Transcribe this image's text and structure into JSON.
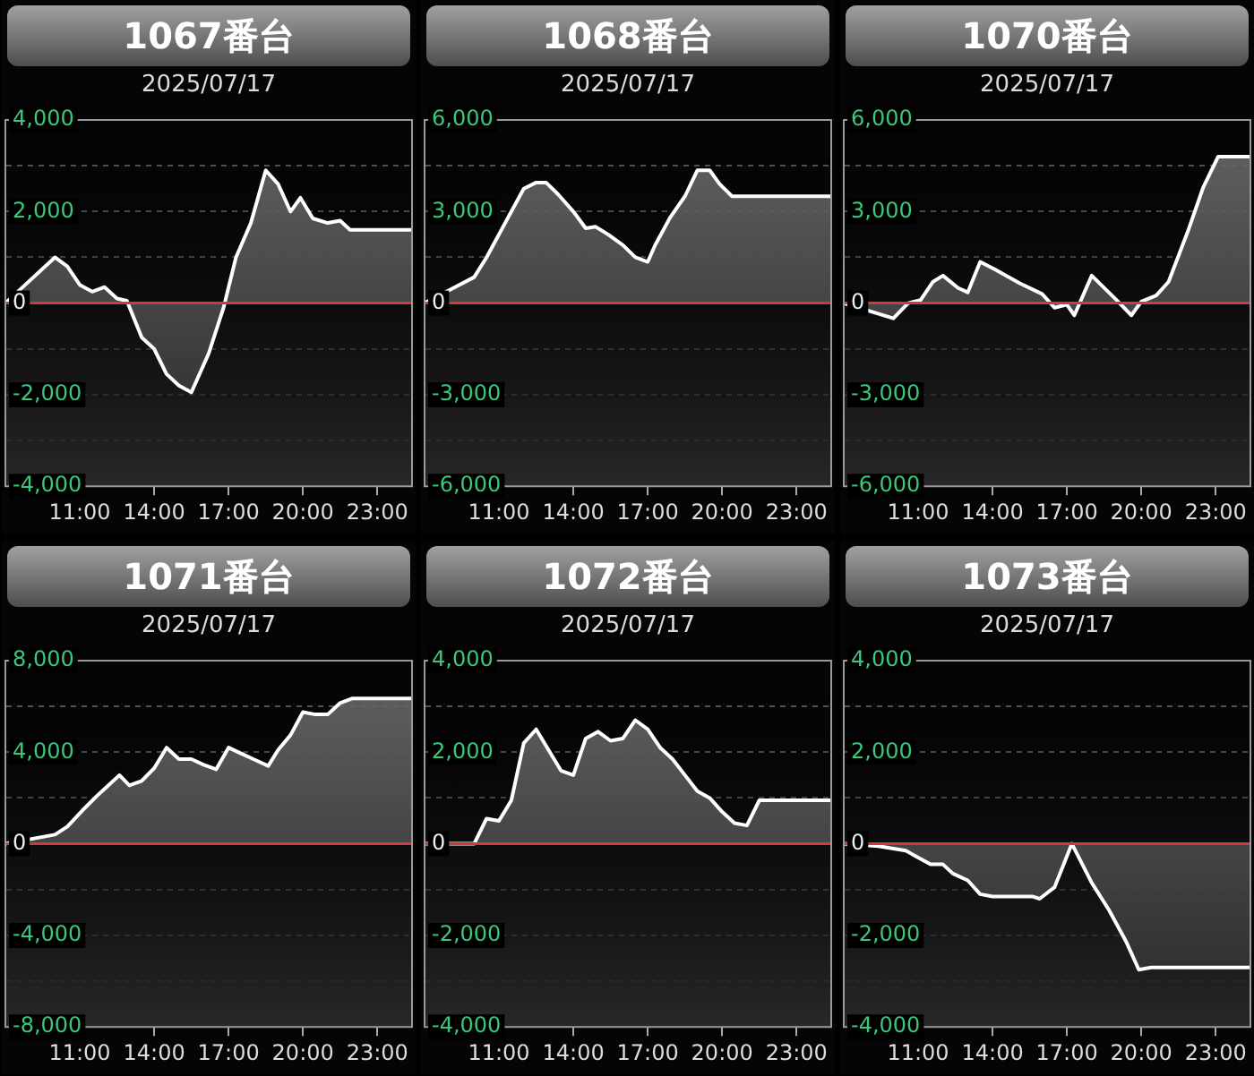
{
  "chart_data": [
    {
      "type": "area",
      "title": "1067番台",
      "subtitle": "2025/07/17",
      "color": "#ffffff",
      "x": [
        8,
        10,
        10.5,
        11,
        11.5,
        12,
        12.5,
        12.9,
        13.5,
        14,
        14.5,
        15,
        15.5,
        16.2,
        16.8,
        17.3,
        17.9,
        18.5,
        19,
        19.5,
        19.9,
        20.4,
        21,
        21.5,
        21.9,
        24.4
      ],
      "values": [
        0,
        1000,
        800,
        400,
        250,
        350,
        100,
        50,
        -750,
        -1000,
        -1550,
        -1800,
        -1950,
        -1100,
        -100,
        1000,
        1750,
        2900,
        2600,
        2000,
        2300,
        1850,
        1750,
        1800,
        1600,
        1600
      ],
      "xlim": [
        8,
        24.4
      ],
      "xticks": [
        {
          "value": 11,
          "label": "11:00"
        },
        {
          "value": 14,
          "label": "14:00"
        },
        {
          "value": 17,
          "label": "17:00"
        },
        {
          "value": 20,
          "label": "20:00"
        },
        {
          "value": 23,
          "label": "23:00"
        }
      ],
      "ylim": [
        -4000,
        4000
      ],
      "yticks": [
        {
          "value": -4000,
          "label": "-4,000"
        },
        {
          "value": -3000,
          "label": null
        },
        {
          "value": -2000,
          "label": "-2,000"
        },
        {
          "value": -1000,
          "label": null
        },
        {
          "value": 0,
          "label": "0"
        },
        {
          "value": 1000,
          "label": null
        },
        {
          "value": 2000,
          "label": "2,000"
        },
        {
          "value": 3000,
          "label": null
        },
        {
          "value": 4000,
          "label": "4,000"
        }
      ],
      "grid": "y",
      "ref_lines": [
        {
          "axis": "y",
          "value": 0,
          "color": "#d03a3a"
        }
      ]
    },
    {
      "type": "area",
      "title": "1068番台",
      "subtitle": "2025/07/17",
      "color": "#ffffff",
      "x": [
        8,
        10,
        10.5,
        11.5,
        12,
        12.5,
        12.9,
        13.4,
        14,
        14.5,
        14.9,
        15.4,
        16,
        16.5,
        17,
        17.3,
        17.9,
        18.5,
        19,
        19.5,
        19.9,
        20.4,
        24.4
      ],
      "values": [
        0,
        850,
        1500,
        3000,
        3750,
        3950,
        3950,
        3550,
        3000,
        2450,
        2500,
        2250,
        1900,
        1500,
        1350,
        1900,
        2800,
        3500,
        4350,
        4350,
        3900,
        3500,
        3500
      ],
      "xlim": [
        8,
        24.4
      ],
      "xticks": [
        {
          "value": 11,
          "label": "11:00"
        },
        {
          "value": 14,
          "label": "14:00"
        },
        {
          "value": 17,
          "label": "17:00"
        },
        {
          "value": 20,
          "label": "20:00"
        },
        {
          "value": 23,
          "label": "23:00"
        }
      ],
      "ylim": [
        -6000,
        6000
      ],
      "yticks": [
        {
          "value": -6000,
          "label": "-6,000"
        },
        {
          "value": -4500,
          "label": null
        },
        {
          "value": -3000,
          "label": "-3,000"
        },
        {
          "value": -1500,
          "label": null
        },
        {
          "value": 0,
          "label": "0"
        },
        {
          "value": 1500,
          "label": null
        },
        {
          "value": 3000,
          "label": "3,000"
        },
        {
          "value": 4500,
          "label": null
        },
        {
          "value": 6000,
          "label": "6,000"
        }
      ],
      "grid": "y",
      "ref_lines": [
        {
          "axis": "y",
          "value": 0,
          "color": "#d03a3a"
        }
      ]
    },
    {
      "type": "area",
      "title": "1070番台",
      "subtitle": "2025/07/17",
      "color": "#ffffff",
      "x": [
        8,
        10,
        10.6,
        11.1,
        11.6,
        12,
        12.6,
        13,
        13.5,
        14.1,
        15.1,
        16,
        16.5,
        17,
        17.3,
        18,
        19,
        19.6,
        20,
        20.6,
        21.1,
        21.9,
        22.5,
        23.1,
        24.4
      ],
      "values": [
        0,
        -500,
        0,
        100,
        700,
        900,
        500,
        350,
        1350,
        1100,
        650,
        300,
        -150,
        -50,
        -400,
        900,
        100,
        -400,
        50,
        250,
        700,
        2400,
        3800,
        4800,
        4800
      ],
      "xlim": [
        8,
        24.4
      ],
      "xticks": [
        {
          "value": 11,
          "label": "11:00"
        },
        {
          "value": 14,
          "label": "14:00"
        },
        {
          "value": 17,
          "label": "17:00"
        },
        {
          "value": 20,
          "label": "20:00"
        },
        {
          "value": 23,
          "label": "23:00"
        }
      ],
      "ylim": [
        -6000,
        6000
      ],
      "yticks": [
        {
          "value": -6000,
          "label": "-6,000"
        },
        {
          "value": -4500,
          "label": null
        },
        {
          "value": -3000,
          "label": "-3,000"
        },
        {
          "value": -1500,
          "label": null
        },
        {
          "value": 0,
          "label": "0"
        },
        {
          "value": 1500,
          "label": null
        },
        {
          "value": 3000,
          "label": "3,000"
        },
        {
          "value": 4500,
          "label": null
        },
        {
          "value": 6000,
          "label": "6,000"
        }
      ],
      "grid": "y",
      "ref_lines": [
        {
          "axis": "y",
          "value": 0,
          "color": "#d03a3a"
        }
      ]
    },
    {
      "type": "area",
      "title": "1071番台",
      "subtitle": "2025/07/17",
      "color": "#ffffff",
      "x": [
        8,
        10,
        10.5,
        11.1,
        11.7,
        12.1,
        12.6,
        13,
        13.5,
        14,
        14.5,
        15,
        15.5,
        16,
        16.5,
        17,
        17.5,
        18,
        18.6,
        19,
        19.5,
        20,
        20.5,
        21,
        21.5,
        22,
        24.4
      ],
      "values": [
        0,
        400,
        750,
        1450,
        2100,
        2500,
        3000,
        2550,
        2750,
        3300,
        4200,
        3700,
        3700,
        3450,
        3250,
        4200,
        3950,
        3700,
        3400,
        4100,
        4750,
        5750,
        5650,
        5650,
        6150,
        6350,
        6350
      ],
      "xlim": [
        8,
        24.4
      ],
      "xticks": [
        {
          "value": 11,
          "label": "11:00"
        },
        {
          "value": 14,
          "label": "14:00"
        },
        {
          "value": 17,
          "label": "17:00"
        },
        {
          "value": 20,
          "label": "20:00"
        },
        {
          "value": 23,
          "label": "23:00"
        }
      ],
      "ylim": [
        -8000,
        8000
      ],
      "yticks": [
        {
          "value": -8000,
          "label": "-8,000"
        },
        {
          "value": -6000,
          "label": null
        },
        {
          "value": -4000,
          "label": "-4,000"
        },
        {
          "value": -2000,
          "label": null
        },
        {
          "value": 0,
          "label": "0"
        },
        {
          "value": 2000,
          "label": null
        },
        {
          "value": 4000,
          "label": "4,000"
        },
        {
          "value": 6000,
          "label": null
        },
        {
          "value": 8000,
          "label": "8,000"
        }
      ],
      "grid": "y",
      "ref_lines": [
        {
          "axis": "y",
          "value": 0,
          "color": "#d03a3a"
        }
      ]
    },
    {
      "type": "area",
      "title": "1072番台",
      "subtitle": "2025/07/17",
      "color": "#ffffff",
      "x": [
        8,
        10,
        10.5,
        11,
        11.5,
        12,
        12.5,
        13,
        13.5,
        14,
        14.5,
        15,
        15.5,
        16,
        16.5,
        17,
        17.5,
        18,
        18.5,
        19,
        19.5,
        20,
        20.5,
        21,
        21.5,
        24.4
      ],
      "values": [
        0,
        0,
        550,
        500,
        950,
        2200,
        2500,
        2050,
        1600,
        1500,
        2300,
        2450,
        2250,
        2300,
        2700,
        2500,
        2100,
        1850,
        1500,
        1150,
        1000,
        700,
        450,
        400,
        950,
        950
      ],
      "xlim": [
        8,
        24.4
      ],
      "xticks": [
        {
          "value": 11,
          "label": "11:00"
        },
        {
          "value": 14,
          "label": "14:00"
        },
        {
          "value": 17,
          "label": "17:00"
        },
        {
          "value": 20,
          "label": "20:00"
        },
        {
          "value": 23,
          "label": "23:00"
        }
      ],
      "ylim": [
        -4000,
        4000
      ],
      "yticks": [
        {
          "value": -4000,
          "label": "-4,000"
        },
        {
          "value": -3000,
          "label": null
        },
        {
          "value": -2000,
          "label": "-2,000"
        },
        {
          "value": -1000,
          "label": null
        },
        0,
        {
          "value": 1000,
          "label": null
        },
        {
          "value": 2000,
          "label": "2,000"
        },
        {
          "value": 3000,
          "label": null
        },
        {
          "value": 4000,
          "label": "4,000"
        }
      ],
      "grid": "y",
      "ref_lines": [
        {
          "axis": "y",
          "value": 0,
          "color": "#d03a3a"
        }
      ]
    },
    {
      "type": "area",
      "title": "1073番台",
      "subtitle": "2025/07/17",
      "color": "#ffffff",
      "x": [
        8,
        9.4,
        10.5,
        11,
        11.5,
        12,
        12.4,
        13,
        13.5,
        14,
        14.8,
        15.6,
        15.9,
        16.5,
        17.2,
        18,
        18.7,
        19.4,
        19.9,
        20.4,
        24.4
      ],
      "values": [
        0,
        -50,
        -150,
        -300,
        -450,
        -450,
        -650,
        -800,
        -1100,
        -1150,
        -1150,
        -1150,
        -1200,
        -950,
        0,
        -850,
        -1450,
        -2150,
        -2750,
        -2700,
        -2700
      ],
      "xlim": [
        8,
        24.4
      ],
      "xticks": [
        {
          "value": 11,
          "label": "11:00"
        },
        {
          "value": 14,
          "label": "14:00"
        },
        {
          "value": 17,
          "label": "17:00"
        },
        {
          "value": 20,
          "label": "20:00"
        },
        {
          "value": 23,
          "label": "23:00"
        }
      ],
      "ylim": [
        -4000,
        4000
      ],
      "yticks": [
        {
          "value": -4000,
          "label": "-4,000"
        },
        {
          "value": -3000,
          "label": null
        },
        {
          "value": -2000,
          "label": "-2,000"
        },
        {
          "value": -1000,
          "label": null
        },
        0,
        {
          "value": 1000,
          "label": null
        },
        {
          "value": 2000,
          "label": "2,000"
        },
        {
          "value": 3000,
          "label": null
        },
        {
          "value": 4000,
          "label": "4,000"
        }
      ],
      "grid": "y",
      "ref_lines": [
        {
          "axis": "y",
          "value": 0,
          "color": "#d03a3a"
        }
      ]
    }
  ]
}
